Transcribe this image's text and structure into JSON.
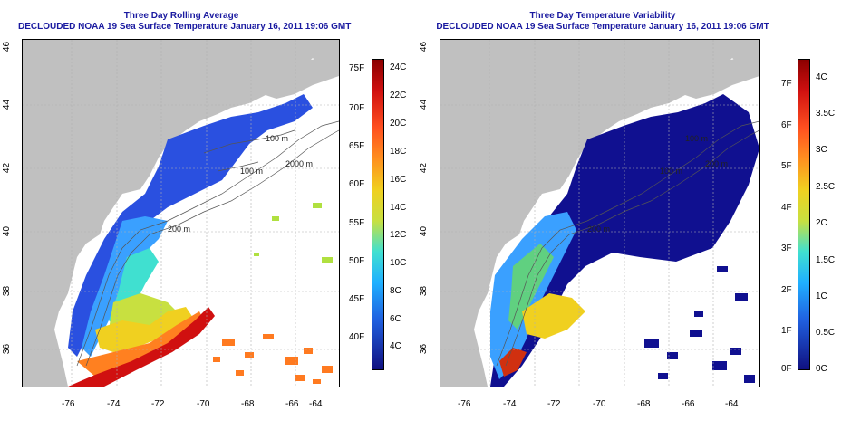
{
  "panels": [
    {
      "title": "Three Day Rolling Average",
      "subtitle": "DECLOUDED NOAA 19 Sea Surface Temperature January 16, 2011 19:06 GMT"
    },
    {
      "title": "Three Day Temperature Variability",
      "subtitle": "DECLOUDED NOAA 19 Sea Surface Temperature January 16, 2011 19:06 GMT"
    }
  ],
  "lon_ticks": [
    "-76",
    "-74",
    "-72",
    "-70",
    "-68",
    "-66",
    "-64"
  ],
  "lat_ticks": [
    "36",
    "38",
    "40",
    "42",
    "44",
    "46"
  ],
  "bathymetry_labels": [
    "100 m",
    "200 m",
    "100 m",
    "2000 m",
    "100 m",
    "200 m",
    "100 m",
    "200 m"
  ],
  "colorbar_avg": {
    "f_labels": [
      "75F",
      "70F",
      "65F",
      "60F",
      "55F",
      "50F",
      "45F",
      "40F"
    ],
    "c_labels": [
      "24C",
      "22C",
      "20C",
      "18C",
      "16C",
      "14C",
      "12C",
      "10C",
      "8C",
      "6C",
      "4C"
    ]
  },
  "colorbar_var": {
    "f_labels": [
      "7F",
      "6F",
      "5F",
      "4F",
      "3F",
      "2F",
      "1F",
      "0F"
    ],
    "c_labels": [
      "4C",
      "3.5C",
      "3C",
      "2.5C",
      "2C",
      "1.5C",
      "1C",
      "0.5C",
      "0C"
    ]
  },
  "colors": {
    "title": "#1a1aa0",
    "land": "#c0c0c0",
    "ocean_missing": "#ffffff",
    "grid": "#b0b0b0"
  }
}
